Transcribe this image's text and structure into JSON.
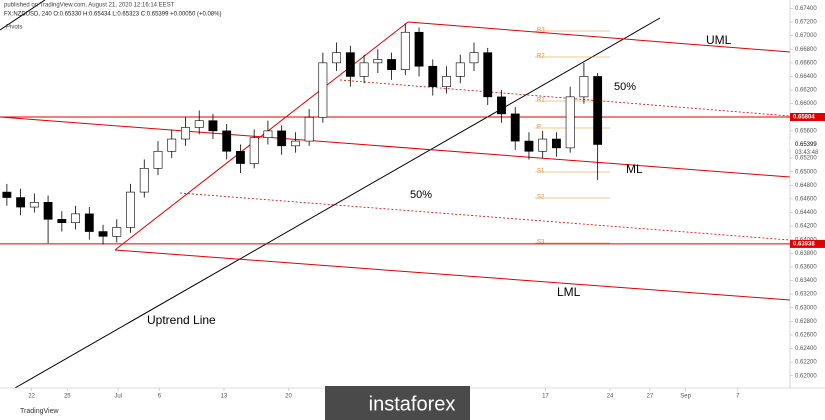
{
  "chart_data": {
    "type": "candlestick",
    "header": "published on TradingView.com, August 21, 2020 12:16:14 EEST",
    "symbol": "FX:NZDUSD, 240  O:0.65330  H:0.65434  L:0.65323  C:0.65399  +0.00050 (+0.08%)",
    "indicator": "Pivots",
    "countdown": "03:43:48",
    "footer": "TradingView",
    "watermark": "instaforex",
    "up_color": "#ffffff",
    "down_color": "#000000",
    "open": [
      0.647,
      0.6462,
      0.6448,
      0.6455,
      0.643,
      0.6425,
      0.6438,
      0.6412,
      0.6405,
      0.6418,
      0.647,
      0.6505,
      0.653,
      0.6548,
      0.6565,
      0.6575,
      0.656,
      0.653,
      0.6512,
      0.655,
      0.656,
      0.6538,
      0.6545,
      0.658,
      0.666,
      0.6675,
      0.664,
      0.666,
      0.6665,
      0.665,
      0.6705,
      0.6655,
      0.6625,
      0.664,
      0.666,
      0.6675,
      0.661,
      0.6585,
      0.6545,
      0.653,
      0.6548,
      0.6535,
      0.661,
      0.664
    ],
    "high": [
      0.6482,
      0.6475,
      0.6468,
      0.6465,
      0.6442,
      0.645,
      0.6448,
      0.6422,
      0.643,
      0.6482,
      0.6518,
      0.6545,
      0.6562,
      0.658,
      0.659,
      0.6585,
      0.657,
      0.654,
      0.6562,
      0.6575,
      0.6568,
      0.6558,
      0.6592,
      0.6675,
      0.669,
      0.6685,
      0.6672,
      0.668,
      0.6675,
      0.6718,
      0.6712,
      0.6665,
      0.6655,
      0.6672,
      0.669,
      0.6682,
      0.662,
      0.6595,
      0.6558,
      0.656,
      0.6558,
      0.6625,
      0.666,
      0.6645
    ],
    "low": [
      0.645,
      0.6436,
      0.644,
      0.6395,
      0.6412,
      0.6415,
      0.64,
      0.6393,
      0.6396,
      0.641,
      0.6462,
      0.6495,
      0.652,
      0.6538,
      0.6555,
      0.6548,
      0.6518,
      0.6498,
      0.6505,
      0.654,
      0.6525,
      0.6528,
      0.6538,
      0.6572,
      0.6648,
      0.6625,
      0.663,
      0.6645,
      0.6635,
      0.6642,
      0.664,
      0.6612,
      0.6615,
      0.663,
      0.6648,
      0.6598,
      0.6572,
      0.6532,
      0.6518,
      0.652,
      0.6522,
      0.6528,
      0.66,
      0.6488
    ],
    "close": [
      0.6462,
      0.6448,
      0.6455,
      0.643,
      0.6425,
      0.6438,
      0.6412,
      0.6405,
      0.6418,
      0.647,
      0.6505,
      0.653,
      0.6548,
      0.6565,
      0.6575,
      0.656,
      0.653,
      0.6512,
      0.655,
      0.656,
      0.6538,
      0.6545,
      0.658,
      0.666,
      0.6675,
      0.664,
      0.666,
      0.6665,
      0.665,
      0.6705,
      0.6655,
      0.6625,
      0.664,
      0.666,
      0.6675,
      0.661,
      0.6585,
      0.6545,
      0.653,
      0.6548,
      0.6535,
      0.661,
      0.664,
      0.654
    ],
    "xlim": [
      0,
      57.5
    ],
    "xticks": [
      {
        "value": 2.3,
        "label": "22"
      },
      {
        "value": 4.9,
        "label": "25"
      },
      {
        "value": 8.6,
        "label": "Jul"
      },
      {
        "value": 11.6,
        "label": "6"
      },
      {
        "value": 16.3,
        "label": "13"
      },
      {
        "value": 21.0,
        "label": "20"
      },
      {
        "value": 39.7,
        "label": "17"
      },
      {
        "value": 44.4,
        "label": "24"
      },
      {
        "value": 47.3,
        "label": "27"
      },
      {
        "value": 49.9,
        "label": "Sep"
      },
      {
        "value": 53.7,
        "label": "7"
      }
    ],
    "ylim": [
      0.6182,
      0.67524
    ],
    "yticks": [
      {
        "value": 0.62,
        "label": "0.62000"
      },
      {
        "value": 0.622,
        "label": "0.62200"
      },
      {
        "value": 0.624,
        "label": "0.62400"
      },
      {
        "value": 0.626,
        "label": "0.62600"
      },
      {
        "value": 0.628,
        "label": "0.62800"
      },
      {
        "value": 0.63,
        "label": "0.63000"
      },
      {
        "value": 0.632,
        "label": "0.63200"
      },
      {
        "value": 0.634,
        "label": "0.63400"
      },
      {
        "value": 0.636,
        "label": "0.63600"
      },
      {
        "value": 0.638,
        "label": "0.63800"
      },
      {
        "value": 0.64,
        "label": "0.64000"
      },
      {
        "value": 0.642,
        "label": "0.64200"
      },
      {
        "value": 0.644,
        "label": "0.64400"
      },
      {
        "value": 0.646,
        "label": "0.64600"
      },
      {
        "value": 0.648,
        "label": "0.64800"
      },
      {
        "value": 0.65,
        "label": "0.65000"
      },
      {
        "value": 0.652,
        "label": "0.65200"
      },
      {
        "value": 0.654,
        "label": "0.65400"
      },
      {
        "value": 0.656,
        "label": "0.65600"
      },
      {
        "value": 0.658,
        "label": "0.65800"
      },
      {
        "value": 0.66,
        "label": "0.66000"
      },
      {
        "value": 0.662,
        "label": "0.66200"
      },
      {
        "value": 0.664,
        "label": "0.66400"
      },
      {
        "value": 0.666,
        "label": "0.66600"
      },
      {
        "value": 0.668,
        "label": "0.66800"
      },
      {
        "value": 0.67,
        "label": "0.67000"
      },
      {
        "value": 0.672,
        "label": "0.67200"
      },
      {
        "value": 0.674,
        "label": "0.67400"
      }
    ],
    "price_lines": [
      {
        "value": 0.65804,
        "color": "#e00000"
      },
      {
        "value": 0.63938,
        "color": "#e00000"
      }
    ],
    "last_price": 0.65399,
    "annotations": {
      "uml": "UML",
      "ml": "ML",
      "lml": "LML",
      "half_upper": "50%",
      "half_lower": "50%",
      "uptrend": "Uptrend Line"
    },
    "pivots": [
      "R3",
      "R2",
      "R1",
      "P",
      "S1",
      "S2",
      "S3"
    ]
  }
}
